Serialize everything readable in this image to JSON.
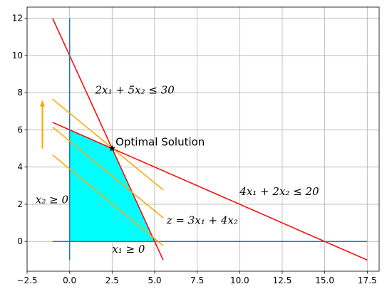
{
  "chart_data": {
    "type": "line",
    "title": "",
    "xlabel": "",
    "ylabel": "",
    "xlim": [
      -2.5,
      18.2
    ],
    "ylim": [
      -1.6,
      12.6
    ],
    "grid": true,
    "x_ticks": [
      -2.5,
      0.0,
      2.5,
      5.0,
      7.5,
      10.0,
      12.5,
      15.0,
      17.5
    ],
    "x_tick_labels": [
      "−2.5",
      "0.0",
      "2.5",
      "5.0",
      "7.5",
      "10.0",
      "12.5",
      "15.0",
      "17.5"
    ],
    "y_ticks": [
      0,
      2,
      4,
      6,
      8,
      10,
      12
    ],
    "y_tick_labels": [
      "0",
      "2",
      "4",
      "6",
      "8",
      "10",
      "12"
    ],
    "feasible_region": {
      "color": "#00ffff",
      "points": [
        [
          0,
          0
        ],
        [
          0,
          6
        ],
        [
          2.5,
          5
        ],
        [
          5,
          0
        ]
      ]
    },
    "series": [
      {
        "key": "c1",
        "color": "#ff0000",
        "points": [
          [
            -1,
            12
          ],
          [
            5.5,
            -1
          ]
        ]
      },
      {
        "key": "c2",
        "color": "#ff0000",
        "points": [
          [
            -1,
            6.4
          ],
          [
            17.5,
            -1
          ]
        ]
      },
      {
        "key": "x1axis",
        "color": "#1f77b4",
        "points": [
          [
            -1,
            0
          ],
          [
            17.5,
            0
          ]
        ]
      },
      {
        "key": "x2axis",
        "color": "#1f77b4",
        "points": [
          [
            0,
            -1
          ],
          [
            0,
            12
          ]
        ]
      },
      {
        "key": "obj1",
        "color": "#ffa500",
        "points": [
          [
            -1,
            4.65
          ],
          [
            5.5,
            -0.225
          ]
        ]
      },
      {
        "key": "obj2",
        "color": "#ffa500",
        "points": [
          [
            -1,
            6.15
          ],
          [
            5.5,
            1.275
          ]
        ]
      },
      {
        "key": "obj3",
        "color": "#ffa500",
        "points": [
          [
            -1,
            7.65
          ],
          [
            5.5,
            2.775
          ]
        ]
      }
    ],
    "arrow": {
      "color": "#ffa500",
      "from": [
        -1.6,
        5.0
      ],
      "to": [
        -1.6,
        7.6
      ]
    },
    "optimal_point": {
      "x": 2.5,
      "y": 5,
      "marker": "*"
    },
    "annotations": [
      {
        "key": "ann_c1",
        "text": "2x₁ + 5x₂ ≤ 30",
        "x": 1.5,
        "y": 7.95,
        "style": "math"
      },
      {
        "key": "ann_opt",
        "text": "Optimal Solution",
        "x": 2.7,
        "y": 5.15,
        "style": "plain"
      },
      {
        "key": "ann_c2",
        "text": "4x₁ + 2x₂ ≤ 20",
        "x": 10.0,
        "y": 2.5,
        "style": "math"
      },
      {
        "key": "ann_x2",
        "text": "x₂ ≥ 0",
        "x": -2.0,
        "y": 2.05,
        "style": "math"
      },
      {
        "key": "ann_obj",
        "text": "z = 3x₁ + 4x₂",
        "x": 5.7,
        "y": 0.95,
        "style": "math"
      },
      {
        "key": "ann_x1",
        "text": "x₁ ≥ 0",
        "x": 2.5,
        "y": -0.6,
        "style": "math"
      }
    ]
  }
}
